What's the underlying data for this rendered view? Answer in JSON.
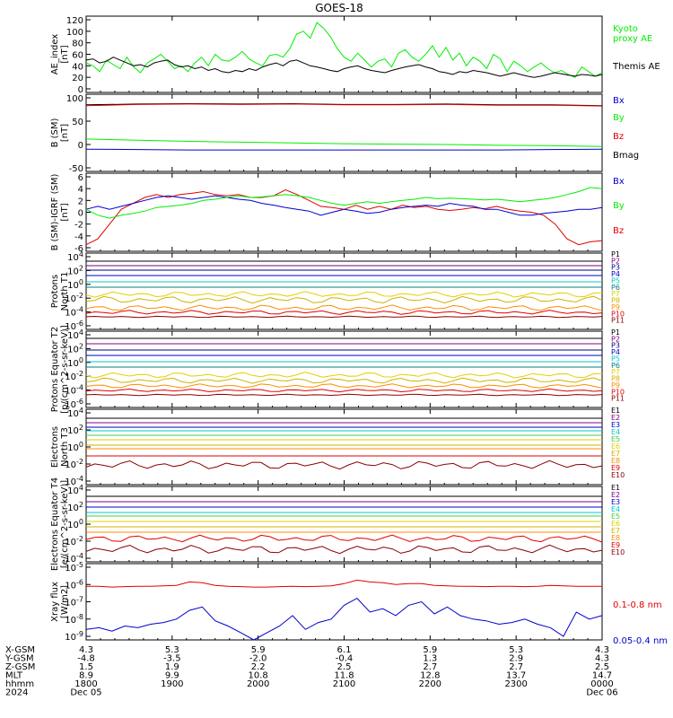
{
  "title": "GOES-18",
  "colors": {
    "black": "#000000",
    "green": "#00ee00",
    "red": "#e00000",
    "blue": "#0000cc",
    "darkred": "#8b0000",
    "purple": "#800080",
    "navy": "#000080",
    "cyan": "#00c8c8",
    "yellow": "#e0d000",
    "orange": "#ff8c00",
    "brick": "#b22222",
    "teal": "#008080",
    "lightgreen": "#40d040",
    "gold": "#d4b000"
  },
  "chart_data": [
    {
      "type": "line",
      "ylabel": "AE_index [nT]",
      "ylim": [
        0,
        120
      ],
      "yticks": [
        "120",
        "100",
        "80",
        "60",
        "40",
        "20",
        "0"
      ],
      "legend": [
        {
          "text": "Kyoto",
          "color": "#00ee00"
        },
        {
          "text": "proxy AE",
          "color": "#00ee00"
        },
        {
          "text": "Themis AE",
          "color": "#000000"
        }
      ],
      "series": [
        {
          "name": "Kyoto proxy AE",
          "color": "#00ee00",
          "values": [
            45,
            40,
            30,
            50,
            42,
            35,
            55,
            38,
            28,
            45,
            52,
            60,
            48,
            35,
            40,
            30,
            45,
            55,
            40,
            60,
            50,
            48,
            55,
            65,
            52,
            45,
            40,
            58,
            60,
            55,
            70,
            95,
            100,
            88,
            115,
            105,
            90,
            70,
            55,
            48,
            62,
            50,
            38,
            48,
            52,
            38,
            62,
            68,
            55,
            48,
            60,
            75,
            55,
            72,
            50,
            62,
            40,
            55,
            48,
            35,
            60,
            52,
            30,
            48,
            40,
            30,
            38,
            45,
            35,
            28,
            32,
            25,
            20,
            38,
            30,
            22,
            28
          ]
        },
        {
          "name": "Themis AE",
          "color": "#000000",
          "values": [
            50,
            52,
            45,
            48,
            55,
            50,
            45,
            40,
            42,
            38,
            45,
            48,
            50,
            42,
            38,
            40,
            35,
            38,
            32,
            35,
            30,
            28,
            32,
            30,
            35,
            32,
            38,
            42,
            45,
            40,
            48,
            50,
            45,
            40,
            38,
            35,
            32,
            30,
            35,
            38,
            40,
            35,
            32,
            30,
            28,
            32,
            35,
            38,
            40,
            42,
            38,
            35,
            30,
            28,
            25,
            30,
            28,
            32,
            30,
            28,
            25,
            22,
            25,
            28,
            25,
            22,
            20,
            22,
            25,
            28,
            26,
            24,
            22,
            25,
            24,
            22,
            25
          ]
        }
      ]
    },
    {
      "type": "line",
      "ylabel": "B (SM) [nT]",
      "ylim": [
        -60,
        120
      ],
      "yticks": [
        "100",
        "50",
        "0",
        "-50"
      ],
      "legend": [
        {
          "text": "Bx",
          "color": "#0000cc"
        },
        {
          "text": "By",
          "color": "#00ee00"
        },
        {
          "text": "Bz",
          "color": "#e00000"
        },
        {
          "text": "Bmag",
          "color": "#000000"
        }
      ],
      "series": [
        {
          "name": "Bmag",
          "color": "#000000",
          "values": [
            102,
            104,
            105,
            104,
            105,
            103,
            103,
            104,
            102,
            102,
            100
          ]
        },
        {
          "name": "Bz",
          "color": "#e00000",
          "values": [
            100,
            103,
            104,
            103,
            104,
            102,
            102,
            103,
            101,
            101,
            99
          ]
        },
        {
          "name": "By",
          "color": "#00ee00",
          "values": [
            14,
            11,
            8,
            6,
            4,
            2,
            1,
            0,
            -2,
            -3,
            -5
          ]
        },
        {
          "name": "Bx",
          "color": "#0000cc",
          "values": [
            -12,
            -13,
            -14,
            -14,
            -14,
            -14,
            -14,
            -14,
            -14,
            -13,
            -12
          ]
        }
      ]
    },
    {
      "type": "line",
      "ylabel": "B (SM)-IGRF (SM) [nT]",
      "ylim": [
        -6,
        6
      ],
      "yticks": [
        "6",
        "4",
        "2",
        "0",
        "-2",
        "-4",
        "-6"
      ],
      "legend": [
        {
          "text": "Bx",
          "color": "#0000cc"
        },
        {
          "text": "By",
          "color": "#00ee00"
        },
        {
          "text": "Bz",
          "color": "#e00000"
        }
      ],
      "series": [
        {
          "name": "Bz",
          "color": "#e00000",
          "values": [
            -5.5,
            -4.5,
            -2,
            0.5,
            1.5,
            2.5,
            3,
            2.5,
            3,
            3.2,
            3.5,
            3,
            2.8,
            3,
            2.5,
            2.5,
            2.8,
            3.8,
            3,
            2,
            1,
            0.8,
            0.5,
            1.2,
            0.5,
            1,
            0.5,
            1.2,
            0.8,
            1,
            0.5,
            0.3,
            0.5,
            0.8,
            0.6,
            1,
            0.5,
            0.2,
            0,
            -0.5,
            -2,
            -4.5,
            -5.5,
            -5,
            -4.8
          ]
        },
        {
          "name": "Bx",
          "color": "#0000cc",
          "values": [
            0.5,
            1,
            0.5,
            1,
            1.5,
            2,
            2.5,
            2.8,
            2.5,
            2.2,
            2.5,
            2.8,
            2.5,
            2.2,
            2,
            1.5,
            1.2,
            0.8,
            0.5,
            0.2,
            -0.5,
            0,
            0.5,
            0.2,
            -0.2,
            0,
            0.5,
            0.8,
            1,
            1.2,
            1,
            1.5,
            1.2,
            1,
            0.5,
            0.5,
            0,
            -0.5,
            -0.5,
            -0.2,
            0,
            0.2,
            0.5,
            0.5,
            0.8
          ]
        },
        {
          "name": "By",
          "color": "#00ee00",
          "values": [
            0.5,
            -0.5,
            -1,
            -0.5,
            -0.2,
            0.2,
            0.8,
            1,
            1.2,
            1.5,
            2,
            2.2,
            2.5,
            2.8,
            2.5,
            2.6,
            2.8,
            3,
            2.8,
            2.5,
            2,
            1.5,
            1.2,
            1.5,
            1.8,
            1.5,
            1.8,
            2,
            2.2,
            2.5,
            2.3,
            2.4,
            2.3,
            2.2,
            2.1,
            2.2,
            2,
            1.8,
            2,
            2.2,
            2.5,
            3,
            3.5,
            4.2,
            4
          ]
        }
      ]
    },
    {
      "type": "line",
      "ylabel": "Protons North T1",
      "yscale": "log",
      "yticks": [
        "10^4",
        "10^2",
        "10^0",
        "10^-2",
        "10^-4",
        "10^-6"
      ],
      "legend": [
        {
          "text": "P1",
          "color": "#000000"
        },
        {
          "text": "P2",
          "color": "#800080"
        },
        {
          "text": "P3",
          "color": "#000080"
        },
        {
          "text": "P4",
          "color": "#0000cc"
        },
        {
          "text": "P5",
          "color": "#00c8c8"
        },
        {
          "text": "P6",
          "color": "#008080"
        },
        {
          "text": "P7",
          "color": "#e0d000"
        },
        {
          "text": "P8",
          "color": "#d4b000"
        },
        {
          "text": "P9",
          "color": "#ff8c00"
        },
        {
          "text": "P10",
          "color": "#e00000"
        },
        {
          "text": "P11",
          "color": "#8b0000"
        }
      ]
    },
    {
      "type": "line",
      "ylabel": "Protons Equator T2 [p/(cm^2-s-sr-keV)]",
      "yscale": "log",
      "yticks": [
        "10^4",
        "10^2",
        "10^0",
        "10^-2",
        "10^-4",
        "10^-6"
      ],
      "legend": [
        {
          "text": "P1",
          "color": "#000000"
        },
        {
          "text": "P2",
          "color": "#800080"
        },
        {
          "text": "P3",
          "color": "#000080"
        },
        {
          "text": "P4",
          "color": "#0000cc"
        },
        {
          "text": "P5",
          "color": "#00c8c8"
        },
        {
          "text": "P6",
          "color": "#008080"
        },
        {
          "text": "P7",
          "color": "#e0d000"
        },
        {
          "text": "P8",
          "color": "#d4b000"
        },
        {
          "text": "P9",
          "color": "#ff8c00"
        },
        {
          "text": "P10",
          "color": "#e00000"
        },
        {
          "text": "P11",
          "color": "#8b0000"
        }
      ]
    },
    {
      "type": "line",
      "ylabel": "Electrons North T3",
      "yscale": "log",
      "yticks": [
        "10^4",
        "10^2",
        "10^0",
        "10^-2",
        "10^-4"
      ],
      "legend": [
        {
          "text": "E1",
          "color": "#000000"
        },
        {
          "text": "E2",
          "color": "#800080"
        },
        {
          "text": "E3",
          "color": "#0000cc"
        },
        {
          "text": "E4",
          "color": "#00c8c8"
        },
        {
          "text": "E5",
          "color": "#40d040"
        },
        {
          "text": "E6",
          "color": "#e0d000"
        },
        {
          "text": "E7",
          "color": "#d4b000"
        },
        {
          "text": "E8",
          "color": "#ff8c00"
        },
        {
          "text": "E9",
          "color": "#e00000"
        },
        {
          "text": "E10",
          "color": "#8b0000"
        }
      ]
    },
    {
      "type": "line",
      "ylabel": "Electrons Equator T4 [e/(cm^2-s-sr-keV)]",
      "yscale": "log",
      "yticks": [
        "10^4",
        "10^2",
        "10^0",
        "10^-2",
        "10^-4"
      ],
      "legend": [
        {
          "text": "E1",
          "color": "#000000"
        },
        {
          "text": "E2",
          "color": "#800080"
        },
        {
          "text": "E3",
          "color": "#0000cc"
        },
        {
          "text": "E4",
          "color": "#00c8c8"
        },
        {
          "text": "E5",
          "color": "#40d040"
        },
        {
          "text": "E6",
          "color": "#e0d000"
        },
        {
          "text": "E7",
          "color": "#d4b000"
        },
        {
          "text": "E8",
          "color": "#ff8c00"
        },
        {
          "text": "E9",
          "color": "#e00000"
        },
        {
          "text": "E10",
          "color": "#8b0000"
        }
      ]
    },
    {
      "type": "line",
      "ylabel": "Xray flux [W/m2]",
      "yscale": "log",
      "yticks": [
        "10^-5",
        "10^-6",
        "10^-7",
        "10^-8",
        "10^-9"
      ],
      "legend": [
        {
          "text": "0.1-0.8 nm",
          "color": "#e00000"
        },
        {
          "text": "0.05-0.4 nm",
          "color": "#0000cc"
        }
      ],
      "series": [
        {
          "name": "0.1-0.8 nm",
          "color": "#e00000",
          "values": [
            -6.1,
            -6.1,
            -6.15,
            -6.12,
            -6.1,
            -6.1,
            -6.08,
            -6.05,
            -5.85,
            -5.9,
            -6.05,
            -6.1,
            -6.12,
            -6.15,
            -6.15,
            -6.12,
            -6.1,
            -6.12,
            -6.1,
            -6.08,
            -5.95,
            -5.75,
            -5.85,
            -5.9,
            -6.0,
            -5.95,
            -5.95,
            -6.05,
            -6.08,
            -6.1,
            -6.1,
            -6.12,
            -6.1,
            -6.1,
            -6.12,
            -6.1,
            -6.05,
            -6.08,
            -6.1,
            -6.1,
            -6.1
          ]
        },
        {
          "name": "0.05-0.4 nm",
          "color": "#0000cc",
          "values": [
            -8.6,
            -8.5,
            -8.7,
            -8.4,
            -8.5,
            -8.3,
            -8.2,
            -8.0,
            -7.5,
            -7.3,
            -8.1,
            -8.4,
            -8.8,
            -9.3,
            -8.8,
            -8.4,
            -7.8,
            -8.6,
            -8.2,
            -8.0,
            -7.2,
            -6.8,
            -7.6,
            -7.4,
            -7.8,
            -7.2,
            -7.0,
            -7.7,
            -7.3,
            -7.8,
            -8.0,
            -8.1,
            -8.3,
            -8.2,
            -8.0,
            -8.3,
            -8.5,
            -9.0,
            -7.6,
            -8.0,
            -7.8
          ]
        }
      ]
    }
  ],
  "time_axis": {
    "row_labels": [
      "X-GSM",
      "Y-GSM",
      "Z-GSM",
      "MLT",
      "hhmm",
      "2024"
    ],
    "columns": [
      {
        "values": [
          "4.3",
          "-4.8",
          "1.5",
          "8.9",
          "1800",
          "Dec 05"
        ]
      },
      {
        "values": [
          "5.3",
          "-3.5",
          "1.9",
          "9.9",
          "1900",
          ""
        ]
      },
      {
        "values": [
          "5.9",
          "-2.0",
          "2.2",
          "10.8",
          "2000",
          ""
        ]
      },
      {
        "values": [
          "6.1",
          "-0.4",
          "2.5",
          "11.8",
          "2100",
          ""
        ]
      },
      {
        "values": [
          "5.9",
          "1.3",
          "2.7",
          "12.8",
          "2200",
          ""
        ]
      },
      {
        "values": [
          "5.3",
          "2.9",
          "2.7",
          "13.7",
          "2300",
          ""
        ]
      },
      {
        "values": [
          "4.3",
          "4.3",
          "2.5",
          "14.7",
          "0000",
          "Dec 06"
        ]
      }
    ]
  }
}
